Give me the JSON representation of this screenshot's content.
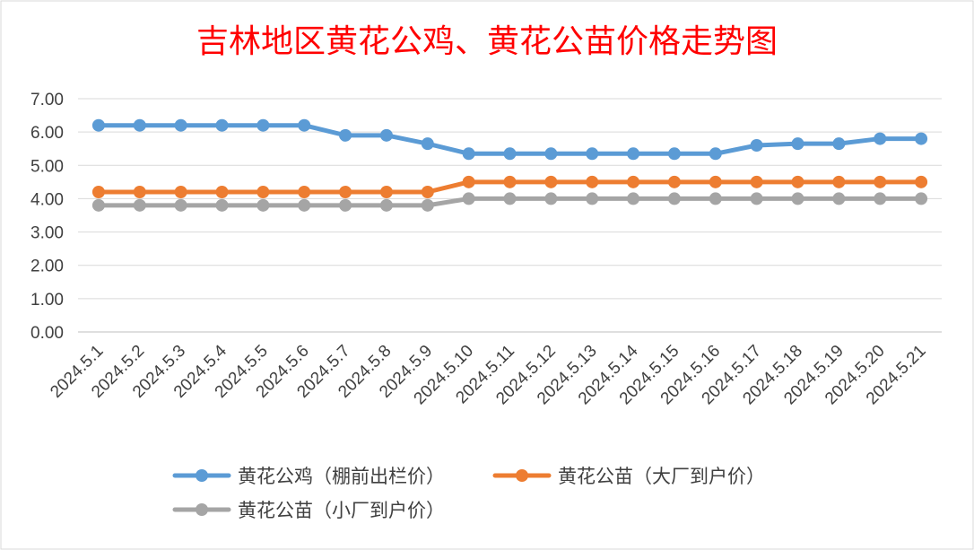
{
  "chart_data": {
    "type": "line",
    "title": "吉林地区黄花公鸡、黄花公苗价格走势图",
    "xlabel": "",
    "ylabel": "",
    "categories": [
      "2024.5.1",
      "2024.5.2",
      "2024.5.3",
      "2024.5.4",
      "2024.5.5",
      "2024.5.6",
      "2024.5.7",
      "2024.5.8",
      "2024.5.9",
      "2024.5.10",
      "2024.5.11",
      "2024.5.12",
      "2024.5.13",
      "2024.5.14",
      "2024.5.15",
      "2024.5.16",
      "2024.5.17",
      "2024.5.18",
      "2024.5.19",
      "2024.5.20",
      "2024.5.21"
    ],
    "ylim": [
      0,
      7
    ],
    "yticks": [
      "0.00",
      "1.00",
      "2.00",
      "3.00",
      "4.00",
      "5.00",
      "6.00",
      "7.00"
    ],
    "grid": true,
    "legend_position": "bottom",
    "series": [
      {
        "name": "黄花公鸡（棚前出栏价）",
        "color": "#5b9bd5",
        "values": [
          6.2,
          6.2,
          6.2,
          6.2,
          6.2,
          6.2,
          5.9,
          5.9,
          5.65,
          5.35,
          5.35,
          5.35,
          5.35,
          5.35,
          5.35,
          5.35,
          5.6,
          5.65,
          5.65,
          5.8,
          5.8
        ]
      },
      {
        "name": "黄花公苗（大厂到户价）",
        "color": "#ed7d31",
        "values": [
          4.2,
          4.2,
          4.2,
          4.2,
          4.2,
          4.2,
          4.2,
          4.2,
          4.2,
          4.5,
          4.5,
          4.5,
          4.5,
          4.5,
          4.5,
          4.5,
          4.5,
          4.5,
          4.5,
          4.5,
          4.5
        ]
      },
      {
        "name": "黄花公苗（小厂到户价）",
        "color": "#a5a5a5",
        "values": [
          3.8,
          3.8,
          3.8,
          3.8,
          3.8,
          3.8,
          3.8,
          3.8,
          3.8,
          4.0,
          4.0,
          4.0,
          4.0,
          4.0,
          4.0,
          4.0,
          4.0,
          4.0,
          4.0,
          4.0,
          4.0
        ]
      }
    ]
  }
}
